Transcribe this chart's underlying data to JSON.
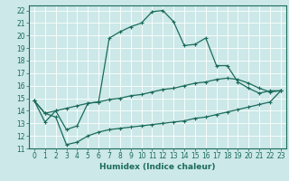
{
  "xlabel": "Humidex (Indice chaleur)",
  "background_color": "#cce8e8",
  "grid_color": "#ffffff",
  "line_color": "#1a6b5a",
  "xlim": [
    -0.5,
    23.5
  ],
  "ylim": [
    11,
    22.4
  ],
  "xticks": [
    0,
    1,
    2,
    3,
    4,
    5,
    6,
    7,
    8,
    9,
    10,
    11,
    12,
    13,
    14,
    15,
    16,
    17,
    18,
    19,
    20,
    21,
    22,
    23
  ],
  "yticks": [
    11,
    12,
    13,
    14,
    15,
    16,
    17,
    18,
    19,
    20,
    21,
    22
  ],
  "line1_x": [
    0,
    1,
    2,
    3,
    4,
    5,
    6,
    7,
    8,
    9,
    10,
    11,
    12,
    13,
    14,
    15,
    16,
    17,
    18,
    19,
    20,
    21,
    22,
    23
  ],
  "line1_y": [
    14.8,
    13.1,
    14.0,
    12.5,
    12.8,
    14.6,
    14.7,
    19.8,
    20.3,
    20.7,
    21.0,
    21.9,
    22.0,
    21.1,
    19.2,
    19.3,
    19.8,
    17.6,
    17.6,
    16.3,
    15.8,
    15.4,
    15.6,
    15.6
  ],
  "line2_x": [
    0,
    1,
    2,
    3,
    4,
    5,
    6,
    7,
    8,
    9,
    10,
    11,
    12,
    13,
    14,
    15,
    16,
    17,
    18,
    19,
    20,
    21,
    22,
    23
  ],
  "line2_y": [
    14.8,
    13.8,
    14.0,
    14.2,
    14.4,
    14.6,
    14.7,
    14.9,
    15.0,
    15.2,
    15.3,
    15.5,
    15.7,
    15.8,
    16.0,
    16.2,
    16.3,
    16.5,
    16.6,
    16.5,
    16.2,
    15.8,
    15.5,
    15.6
  ],
  "line3_x": [
    0,
    1,
    2,
    3,
    4,
    5,
    6,
    7,
    8,
    9,
    10,
    11,
    12,
    13,
    14,
    15,
    16,
    17,
    18,
    19,
    20,
    21,
    22,
    23
  ],
  "line3_y": [
    14.8,
    13.8,
    13.5,
    11.3,
    11.5,
    12.0,
    12.3,
    12.5,
    12.6,
    12.7,
    12.8,
    12.9,
    13.0,
    13.1,
    13.2,
    13.4,
    13.5,
    13.7,
    13.9,
    14.1,
    14.3,
    14.5,
    14.7,
    15.6
  ],
  "marker": "+",
  "markersize": 3,
  "linewidth": 0.9,
  "tick_labelsize": 5.5,
  "xlabel_fontsize": 6.5
}
